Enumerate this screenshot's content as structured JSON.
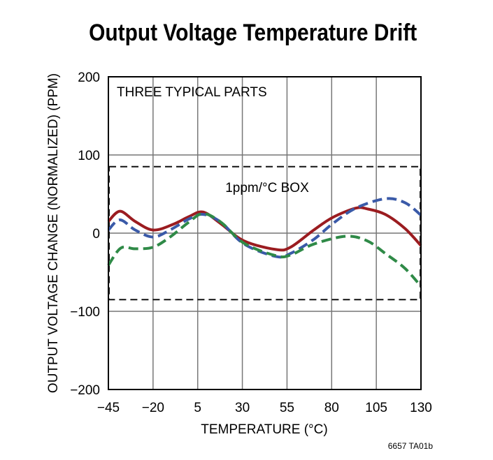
{
  "chart_data": {
    "type": "line",
    "title": "Output Voltage Temperature Drift",
    "xlabel": "TEMPERATURE (°C)",
    "ylabel": "OUTPUT VOLTAGE CHANGE (NORMALIZED) (PPM)",
    "xlim": [
      -45,
      130
    ],
    "ylim": [
      -200,
      200
    ],
    "xticks": [
      -45,
      -20,
      5,
      30,
      55,
      80,
      105,
      130
    ],
    "xtick_labels": [
      "−45",
      "−20",
      "5",
      "30",
      "55",
      "80",
      "105",
      "130"
    ],
    "yticks": [
      200,
      100,
      0,
      -100,
      -200
    ],
    "ytick_labels": [
      "200",
      "100",
      "0",
      "−100",
      "−200"
    ],
    "grid": true,
    "annotations": {
      "parts": "THREE TYPICAL PARTS",
      "box": "1ppm/°C BOX",
      "figure_id": "6657 TA01b"
    },
    "box": {
      "ymin": -85,
      "ymax": 85,
      "xmin": -45,
      "xmax": 130
    },
    "series": [
      {
        "color": "#9b1c20",
        "style": "solid",
        "x": [
          -45,
          -38.5,
          -30,
          -20,
          -9,
          0,
          8,
          18,
          31,
          49,
          57,
          70,
          80.5,
          93.5,
          100,
          110,
          121,
          130
        ],
        "y": [
          15,
          28,
          15,
          4,
          11,
          21,
          27,
          12,
          -10,
          -21,
          -18,
          4,
          20,
          32,
          31,
          24,
          6,
          -16
        ]
      },
      {
        "color": "#3a5aa8",
        "style": "dashed",
        "x": [
          -45,
          -38.5,
          -30,
          -20,
          -10.5,
          0,
          8,
          18,
          31,
          49,
          57,
          70,
          80.5,
          93.5,
          110,
          121,
          130
        ],
        "y": [
          4,
          17,
          4,
          -5,
          4,
          18,
          24,
          14,
          -14,
          -30,
          -26,
          -8,
          12,
          32,
          44,
          39,
          23
        ]
      },
      {
        "color": "#2f8a47",
        "style": "dashed",
        "x": [
          -45,
          -38,
          -30,
          -20,
          -10.5,
          0,
          8,
          18,
          31,
          49,
          57,
          70,
          88,
          100,
          110,
          121,
          130
        ],
        "y": [
          -41,
          -19,
          -20,
          -18,
          -5,
          14,
          25,
          14,
          -13,
          -29,
          -28,
          -14,
          -4,
          -10,
          -26,
          -45,
          -68
        ]
      }
    ]
  }
}
